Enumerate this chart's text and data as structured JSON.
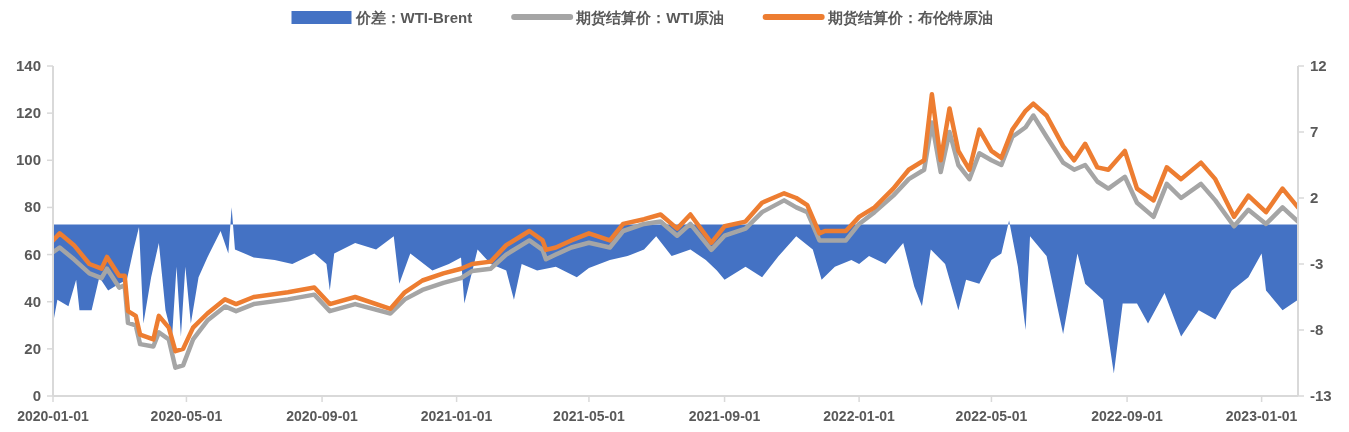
{
  "chart_data": {
    "type": "line",
    "legend": "top",
    "grid": false,
    "xlim": [
      "2020-01-01",
      "2023-02-03"
    ],
    "xticks": [
      "2020-01-01",
      "2020-05-01",
      "2020-09-01",
      "2021-01-01",
      "2021-05-01",
      "2021-09-01",
      "2022-01-01",
      "2022-05-01",
      "2022-09-01",
      "2023-01-01"
    ],
    "ylim": [
      0,
      140
    ],
    "yticks": [
      0,
      20,
      40,
      60,
      80,
      100,
      120,
      140
    ],
    "y2lim": [
      -13,
      12
    ],
    "y2ticks": [
      -13,
      -8,
      -3,
      2,
      7,
      12
    ],
    "series": [
      {
        "name": "价差：WTI-Brent",
        "type": "area",
        "axis": "y2",
        "color": "#4472c4",
        "x": [
          "2020-01-01",
          "2020-01-05",
          "2020-01-15",
          "2020-01-22",
          "2020-01-25",
          "2020-02-05",
          "2020-02-12",
          "2020-02-20",
          "2020-03-01",
          "2020-03-08",
          "2020-03-14",
          "2020-03-19",
          "2020-03-23",
          "2020-03-30",
          "2020-04-06",
          "2020-04-12",
          "2020-04-18",
          "2020-04-22",
          "2020-04-26",
          "2020-04-30",
          "2020-05-05",
          "2020-05-12",
          "2020-05-20",
          "2020-06-01",
          "2020-06-08",
          "2020-06-11",
          "2020-06-14",
          "2020-07-01",
          "2020-07-20",
          "2020-08-05",
          "2020-08-25",
          "2020-09-05",
          "2020-09-08",
          "2020-09-12",
          "2020-10-01",
          "2020-10-20",
          "2020-11-05",
          "2020-11-10",
          "2020-11-20",
          "2020-12-10",
          "2020-12-25",
          "2021-01-05",
          "2021-01-08",
          "2021-01-20",
          "2021-02-01",
          "2021-02-15",
          "2021-02-22",
          "2021-03-01",
          "2021-03-15",
          "2021-04-01",
          "2021-04-20",
          "2021-05-01",
          "2021-05-20",
          "2021-06-05",
          "2021-06-20",
          "2021-07-01",
          "2021-07-15",
          "2021-08-01",
          "2021-08-15",
          "2021-08-25",
          "2021-09-01",
          "2021-09-20",
          "2021-10-05",
          "2021-10-20",
          "2021-11-05",
          "2021-11-20",
          "2021-11-28",
          "2021-12-10",
          "2021-12-25",
          "2022-01-01",
          "2022-01-10",
          "2022-01-25",
          "2022-02-10",
          "2022-02-20",
          "2022-02-27",
          "2022-03-07",
          "2022-03-20",
          "2022-04-01",
          "2022-04-08",
          "2022-04-20",
          "2022-05-01",
          "2022-05-10",
          "2022-05-17",
          "2022-05-25",
          "2022-06-01",
          "2022-06-05",
          "2022-06-20",
          "2022-07-05",
          "2022-07-18",
          "2022-07-25",
          "2022-08-10",
          "2022-08-20",
          "2022-08-28",
          "2022-09-10",
          "2022-09-20",
          "2022-10-05",
          "2022-10-20",
          "2022-11-05",
          "2022-11-20",
          "2022-12-05",
          "2022-12-20",
          "2023-01-01",
          "2023-01-05",
          "2023-01-20",
          "2023-02-03"
        ],
        "values": [
          -7.5,
          -5.7,
          -6.2,
          -4.2,
          -6.5,
          -6.5,
          -4,
          -5,
          -4.5,
          -4.2,
          -1.9,
          -0.2,
          -7.5,
          -4,
          -1.4,
          -6.5,
          -8.5,
          -3.2,
          -8.5,
          -3.2,
          -7.5,
          -4,
          -2.5,
          -0.5,
          -2.2,
          1.3,
          -1.9,
          -2.5,
          -2.7,
          -3,
          -2.2,
          -3,
          -5,
          -2.2,
          -1.4,
          -1.9,
          -0.9,
          -4.5,
          -2.2,
          -3.5,
          -3,
          -2.5,
          -6,
          -1.9,
          -3,
          -3.5,
          -5.7,
          -3,
          -3.5,
          -3.2,
          -4,
          -3.3,
          -2.7,
          -2.4,
          -1.9,
          -0.9,
          -2.4,
          -1.9,
          -2.7,
          -3.5,
          -4.2,
          -3.2,
          -4,
          -2.4,
          -0.9,
          -1.9,
          -4.2,
          -3.2,
          -2.7,
          -3,
          -2.4,
          -3,
          -1.4,
          -4.7,
          -6.2,
          -1.9,
          -3,
          -6.5,
          -4.2,
          -4.5,
          -2.7,
          -2.2,
          0.3,
          -3.2,
          -8,
          -0.9,
          -2.4,
          -8.3,
          -2.2,
          -4.5,
          -5.7,
          -11.3,
          -6,
          -6,
          -7.5,
          -5.2,
          -8.5,
          -6.5,
          -7.2,
          -5,
          -4,
          -2.2,
          -5,
          -6.5,
          -5.7
        ]
      },
      {
        "name": "期货结算价：WTI原油",
        "color": "#a5a5a5",
        "x": [
          "2020-01-01",
          "2020-01-07",
          "2020-01-20",
          "2020-02-03",
          "2020-02-14",
          "2020-02-19",
          "2020-03-01",
          "2020-03-06",
          "2020-03-09",
          "2020-03-16",
          "2020-03-20",
          "2020-04-01",
          "2020-04-06",
          "2020-04-15",
          "2020-04-21",
          "2020-04-28",
          "2020-05-07",
          "2020-05-20",
          "2020-06-05",
          "2020-06-15",
          "2020-07-01",
          "2020-08-01",
          "2020-08-25",
          "2020-09-08",
          "2020-10-01",
          "2020-11-02",
          "2020-11-15",
          "2020-12-01",
          "2020-12-20",
          "2021-01-05",
          "2021-01-15",
          "2021-02-01",
          "2021-02-15",
          "2021-03-01",
          "2021-03-08",
          "2021-03-20",
          "2021-03-23",
          "2021-04-01",
          "2021-04-15",
          "2021-05-01",
          "2021-05-20",
          "2021-06-01",
          "2021-06-20",
          "2021-07-05",
          "2021-07-20",
          "2021-08-01",
          "2021-08-20",
          "2021-09-01",
          "2021-09-20",
          "2021-10-05",
          "2021-10-25",
          "2021-11-05",
          "2021-11-15",
          "2021-11-26",
          "2021-12-01",
          "2021-12-20",
          "2022-01-01",
          "2022-01-15",
          "2022-02-01",
          "2022-02-15",
          "2022-03-01",
          "2022-03-08",
          "2022-03-16",
          "2022-03-24",
          "2022-04-01",
          "2022-04-11",
          "2022-04-20",
          "2022-05-01",
          "2022-05-10",
          "2022-05-20",
          "2022-06-01",
          "2022-06-08",
          "2022-06-20",
          "2022-07-05",
          "2022-07-15",
          "2022-07-25",
          "2022-08-05",
          "2022-08-15",
          "2022-08-30",
          "2022-09-10",
          "2022-09-25",
          "2022-10-07",
          "2022-10-20",
          "2022-11-07",
          "2022-11-20",
          "2022-12-07",
          "2022-12-20",
          "2023-01-05",
          "2023-01-20",
          "2023-02-03"
        ],
        "values": [
          61,
          63,
          58,
          52,
          50,
          54,
          46,
          47,
          31,
          30,
          22,
          21,
          27,
          24,
          12,
          13,
          24,
          32,
          38,
          36,
          39,
          41,
          43,
          36,
          39,
          35,
          41,
          45,
          48,
          50,
          53,
          54,
          60,
          64,
          66,
          62,
          58,
          60,
          63,
          65,
          63,
          70,
          73,
          74,
          68,
          73,
          62,
          68,
          71,
          78,
          83,
          80,
          78,
          66,
          66,
          66,
          73,
          78,
          85,
          92,
          96,
          116,
          95,
          112,
          98,
          92,
          103,
          100,
          98,
          110,
          114,
          119,
          110,
          99,
          96,
          98,
          91,
          88,
          93,
          82,
          76,
          90,
          84,
          90,
          83,
          72,
          79,
          73,
          80,
          74
        ]
      },
      {
        "name": "期货结算价：布伦特原油",
        "color": "#ed7d31",
        "x": [
          "2020-01-01",
          "2020-01-07",
          "2020-01-20",
          "2020-02-03",
          "2020-02-14",
          "2020-02-19",
          "2020-03-01",
          "2020-03-06",
          "2020-03-09",
          "2020-03-16",
          "2020-03-20",
          "2020-04-01",
          "2020-04-06",
          "2020-04-15",
          "2020-04-21",
          "2020-04-28",
          "2020-05-07",
          "2020-05-20",
          "2020-06-05",
          "2020-06-15",
          "2020-07-01",
          "2020-08-01",
          "2020-08-25",
          "2020-09-08",
          "2020-10-01",
          "2020-11-02",
          "2020-11-15",
          "2020-12-01",
          "2020-12-20",
          "2021-01-05",
          "2021-01-15",
          "2021-02-01",
          "2021-02-15",
          "2021-03-01",
          "2021-03-08",
          "2021-03-20",
          "2021-03-23",
          "2021-04-01",
          "2021-04-15",
          "2021-05-01",
          "2021-05-20",
          "2021-06-01",
          "2021-06-20",
          "2021-07-05",
          "2021-07-20",
          "2021-08-01",
          "2021-08-20",
          "2021-09-01",
          "2021-09-20",
          "2021-10-05",
          "2021-10-25",
          "2021-11-05",
          "2021-11-15",
          "2021-11-26",
          "2021-12-01",
          "2021-12-20",
          "2022-01-01",
          "2022-01-15",
          "2022-02-01",
          "2022-02-15",
          "2022-03-01",
          "2022-03-08",
          "2022-03-16",
          "2022-03-24",
          "2022-04-01",
          "2022-04-11",
          "2022-04-20",
          "2022-05-01",
          "2022-05-10",
          "2022-05-20",
          "2022-06-01",
          "2022-06-08",
          "2022-06-20",
          "2022-07-05",
          "2022-07-15",
          "2022-07-25",
          "2022-08-05",
          "2022-08-15",
          "2022-08-30",
          "2022-09-10",
          "2022-09-25",
          "2022-10-07",
          "2022-10-20",
          "2022-11-07",
          "2022-11-20",
          "2022-12-07",
          "2022-12-20",
          "2023-01-05",
          "2023-01-20",
          "2023-02-03"
        ],
        "values": [
          66,
          69,
          64,
          56,
          54,
          59,
          51,
          51,
          36,
          34,
          26,
          24,
          34,
          29,
          19,
          20,
          29,
          35,
          41,
          39,
          42,
          44,
          46,
          39,
          42,
          37,
          44,
          49,
          52,
          54,
          56,
          57,
          64,
          68,
          70,
          66,
          62,
          63,
          66,
          69,
          66,
          73,
          75,
          77,
          71,
          77,
          65,
          72,
          74,
          82,
          86,
          84,
          81,
          69,
          70,
          70,
          76,
          80,
          88,
          96,
          100,
          128,
          100,
          122,
          104,
          96,
          113,
          104,
          101,
          113,
          121,
          124,
          119,
          106,
          100,
          107,
          97,
          96,
          104,
          88,
          83,
          97,
          92,
          99,
          92,
          76,
          85,
          78,
          88,
          80
        ]
      }
    ]
  }
}
